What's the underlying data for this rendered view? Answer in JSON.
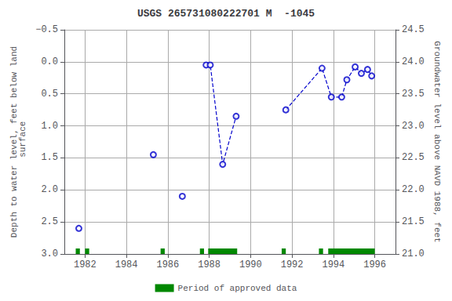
{
  "chart_data": {
    "type": "scatter",
    "title": "USGS 265731080222701 M  -1045",
    "ylabel": "Depth to water level, feet below land\n surface",
    "y2label": "Groundwater level above NAVD 1988, feet",
    "xlim": [
      1981,
      1997
    ],
    "xticks": [
      1982,
      1984,
      1986,
      1988,
      1990,
      1992,
      1994,
      1996
    ],
    "ylim": [
      3.0,
      -0.5
    ],
    "yticks": [
      {
        "value": -0.5,
        "label": "−0.5"
      },
      {
        "value": 0.0,
        "label": "0.0"
      },
      0.5,
      {
        "value": 1.0,
        "label": "1.0"
      },
      1.5,
      {
        "value": 2.0,
        "label": "2.0"
      },
      2.5,
      {
        "value": 3.0,
        "label": "3.0"
      }
    ],
    "y2lim": [
      21.0,
      24.5
    ],
    "y2ticks": [
      {
        "value": 21.0,
        "label": "21.0"
      },
      21.5,
      {
        "value": 22.0,
        "label": "22.0"
      },
      22.5,
      {
        "value": 23.0,
        "label": "23.0"
      },
      23.5,
      {
        "value": 24.0,
        "label": "24.0"
      },
      24.5
    ],
    "grid": true,
    "legend": "bottom",
    "series": [
      {
        "type": "scatter",
        "marker": "circle",
        "color": "#0000cc",
        "x": [
          1981.7,
          1985.3,
          1986.7,
          1987.85,
          1988.05,
          1988.65,
          1989.3,
          1991.7,
          1993.45,
          1993.9,
          1994.4,
          1994.65,
          1995.05,
          1995.35,
          1995.65,
          1995.85
        ],
        "values": [
          2.6,
          1.45,
          2.1,
          0.05,
          0.05,
          1.6,
          0.85,
          0.75,
          0.1,
          0.55,
          0.55,
          0.28,
          0.08,
          0.18,
          0.12,
          0.22
        ]
      },
      {
        "type": "line",
        "line_style": "dashed",
        "color": "#0000cc",
        "x": [
          1987.85,
          1988.05,
          1988.65,
          1989.3
        ],
        "values": [
          0.05,
          0.05,
          1.6,
          0.85
        ]
      },
      {
        "type": "line",
        "line_style": "dashed",
        "color": "#0000cc",
        "x": [
          1991.7,
          1993.45,
          1993.9,
          1994.4,
          1994.65,
          1995.05,
          1995.35,
          1995.65,
          1995.85
        ],
        "values": [
          0.75,
          0.1,
          0.55,
          0.55,
          0.28,
          0.08,
          0.18,
          0.12,
          0.22
        ]
      },
      {
        "type": "bar",
        "name": "Period of approved data",
        "color": "#008800",
        "ranges": [
          [
            1981.55,
            1981.75
          ],
          [
            1982.0,
            1982.2
          ],
          [
            1985.65,
            1985.85
          ],
          [
            1987.55,
            1987.75
          ],
          [
            1987.95,
            1989.35
          ],
          [
            1991.5,
            1991.7
          ],
          [
            1993.3,
            1993.5
          ],
          [
            1993.75,
            1996.0
          ]
        ]
      }
    ]
  }
}
